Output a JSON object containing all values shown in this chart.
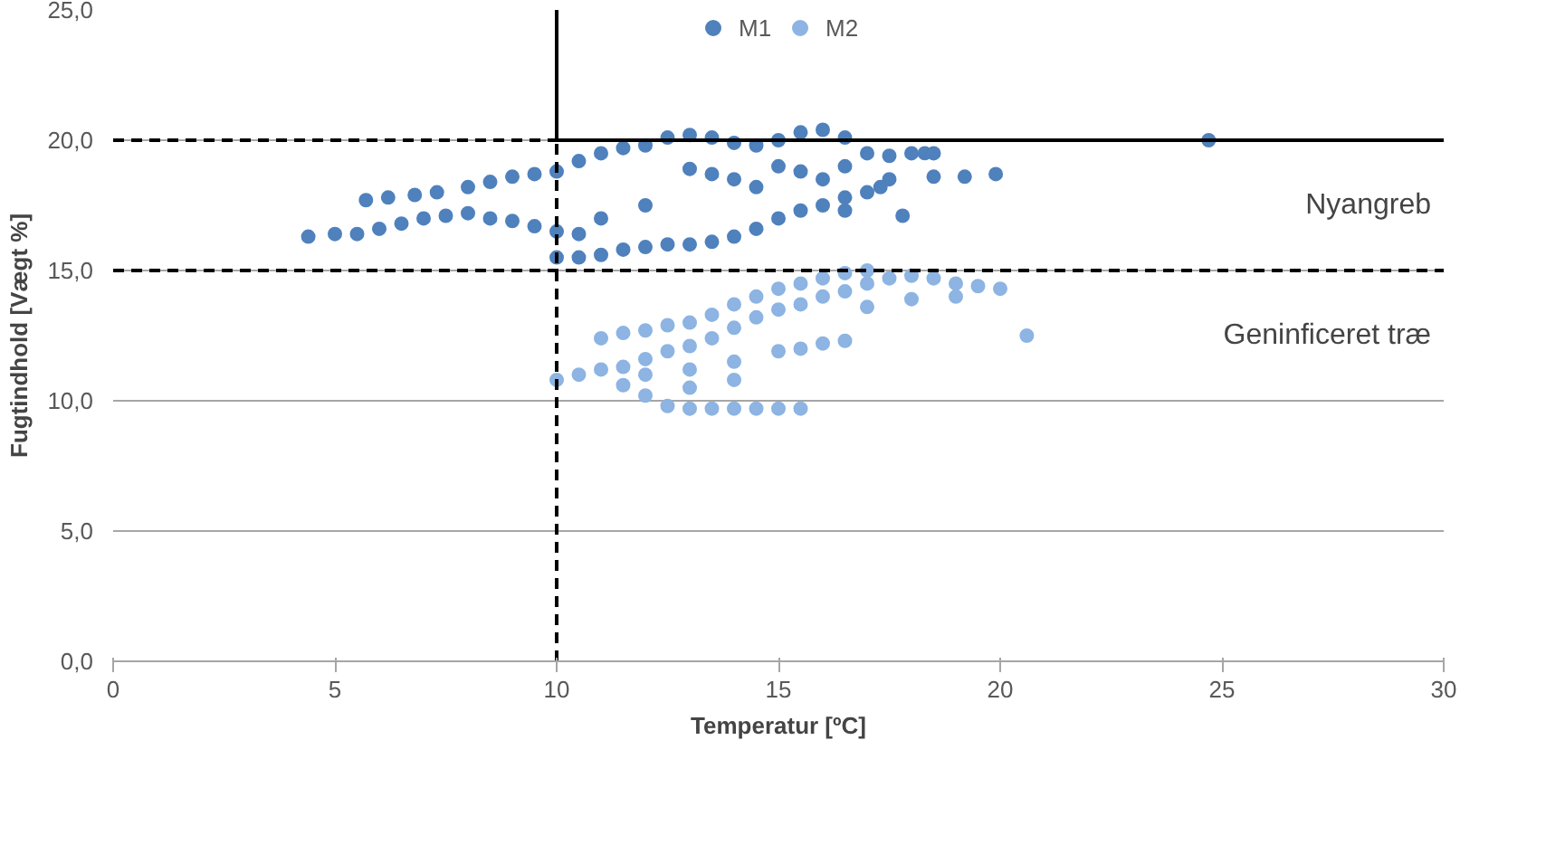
{
  "chart_data": {
    "type": "scatter",
    "xlabel": "Temperatur [ºC]",
    "ylabel": "Fugtindhold [Vægt %]",
    "xlim": [
      0,
      30
    ],
    "ylim": [
      0,
      25
    ],
    "xticks": [
      0,
      5,
      10,
      15,
      20,
      25,
      30
    ],
    "yticks": [
      {
        "value": 0,
        "label": "0,0"
      },
      {
        "value": 5,
        "label": "5,0"
      },
      {
        "value": 10,
        "label": "10,0"
      },
      {
        "value": 15,
        "label": "15,0"
      },
      {
        "value": 20,
        "label": "20,0"
      },
      {
        "value": 25,
        "label": "25,0"
      }
    ],
    "grid": "y",
    "legend": "top",
    "marker": "circle",
    "series": [
      {
        "name": "M1",
        "color": "#4f81bd",
        "x": [
          4.4,
          5,
          5.5,
          6,
          6.5,
          7,
          7.5,
          8,
          8.5,
          9,
          9.5,
          10,
          10.5,
          5.7,
          6.2,
          6.8,
          7.3,
          8,
          8.5,
          9,
          9.5,
          10,
          10.5,
          11,
          11.5,
          12,
          12.5,
          13,
          13.5,
          14,
          14.5,
          15,
          15.5,
          16,
          16.5,
          10,
          10.5,
          11,
          11.5,
          12,
          12.5,
          13,
          13.5,
          14,
          14.5,
          15,
          15.5,
          16,
          16.5,
          15,
          15.5,
          16,
          16.5,
          17,
          17.5,
          17.5,
          17,
          16.5,
          13,
          13.5,
          14,
          14.5,
          12,
          11,
          18,
          18.3,
          18.5,
          18.5,
          19.2,
          19.9,
          17.3,
          17.8,
          24.7
        ],
        "values": [
          16.3,
          16.4,
          16.4,
          16.6,
          16.8,
          17.0,
          17.1,
          17.2,
          17.0,
          16.9,
          16.7,
          16.5,
          16.4,
          17.7,
          17.8,
          17.9,
          18.0,
          18.2,
          18.4,
          18.6,
          18.7,
          18.8,
          19.2,
          19.5,
          19.7,
          19.8,
          20.1,
          20.2,
          20.1,
          19.9,
          19.8,
          20.0,
          20.3,
          20.4,
          20.1,
          15.5,
          15.5,
          15.6,
          15.8,
          15.9,
          16.0,
          16.0,
          16.1,
          16.3,
          16.6,
          17.0,
          17.3,
          17.5,
          17.8,
          19.0,
          18.8,
          18.5,
          19.0,
          19.5,
          19.4,
          18.5,
          18.0,
          17.3,
          18.9,
          18.7,
          18.5,
          18.2,
          17.5,
          17.0,
          19.5,
          19.5,
          19.5,
          18.6,
          18.6,
          18.7,
          18.2,
          17.1,
          20.0
        ]
      },
      {
        "name": "M2",
        "color": "#8db4e2",
        "x": [
          12,
          12.5,
          13,
          13.5,
          14,
          14.5,
          15,
          15.5,
          10,
          10.5,
          11,
          11.5,
          12,
          12.5,
          13,
          13.5,
          14,
          14.5,
          15,
          15.5,
          16,
          16.5,
          17,
          17.5,
          18,
          18.5,
          19,
          19.5,
          20,
          11,
          11.5,
          12,
          12.5,
          13,
          13.5,
          14,
          14.5,
          15,
          15.5,
          16,
          16.5,
          17,
          12,
          13,
          14,
          15,
          15.5,
          16,
          16.5,
          13,
          14,
          11.5,
          17,
          18,
          19,
          20.6
        ],
        "values": [
          10.2,
          9.8,
          9.7,
          9.7,
          9.7,
          9.7,
          9.7,
          9.7,
          10.8,
          11.0,
          11.2,
          11.3,
          11.6,
          11.9,
          12.1,
          12.4,
          12.8,
          13.2,
          13.5,
          13.7,
          14.0,
          14.2,
          14.5,
          14.7,
          14.8,
          14.7,
          14.5,
          14.4,
          14.3,
          12.4,
          12.6,
          12.7,
          12.9,
          13.0,
          13.3,
          13.7,
          14.0,
          14.3,
          14.5,
          14.7,
          14.9,
          15.0,
          11.0,
          11.2,
          11.5,
          11.9,
          12.0,
          12.2,
          12.3,
          10.5,
          10.8,
          10.6,
          13.6,
          13.9,
          14.0,
          12.5
        ]
      },
      {
        "type": "line",
        "color": "#000000",
        "line_style": "solid",
        "marker": "none",
        "x": [
          10,
          10
        ],
        "values": [
          20,
          25
        ]
      },
      {
        "type": "line",
        "color": "#000000",
        "line_style": "solid",
        "marker": "none",
        "x": [
          10,
          30
        ],
        "values": [
          20,
          20
        ]
      },
      {
        "type": "line",
        "color": "#000000",
        "line_style": "dashed",
        "marker": "none",
        "x": [
          10,
          10
        ],
        "values": [
          0,
          20
        ]
      },
      {
        "type": "line",
        "color": "#000000",
        "line_style": "dashed",
        "marker": "none",
        "x": [
          0,
          10
        ],
        "values": [
          20,
          20
        ]
      }
    ],
    "ref_lines": [
      {
        "axis": "y",
        "value": 15,
        "color": "#000000",
        "line_style": "dashed"
      }
    ],
    "annotations": [
      "Nyangreb",
      "Geninficeret træ"
    ]
  }
}
